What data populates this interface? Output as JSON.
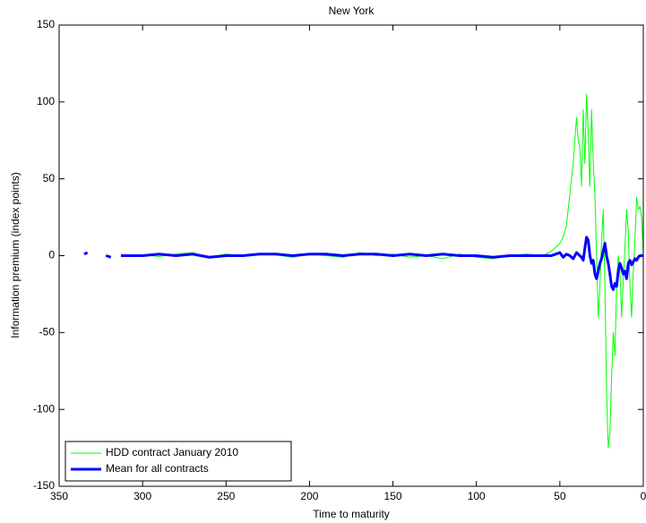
{
  "chart_data": {
    "type": "line",
    "title": "New York",
    "x_label": "Time to maturity",
    "y_label": "Information premium (index points)",
    "x": [
      335,
      333,
      331,
      328,
      325,
      322,
      319,
      316,
      313,
      310,
      300,
      290,
      280,
      270,
      260,
      250,
      240,
      230,
      220,
      210,
      200,
      190,
      180,
      170,
      160,
      150,
      140,
      130,
      120,
      110,
      100,
      90,
      80,
      70,
      60,
      55,
      50,
      48,
      46,
      44,
      42,
      40,
      39,
      38,
      37,
      36,
      35,
      34,
      33,
      32,
      31,
      30,
      29,
      28,
      27,
      26,
      25,
      24,
      23,
      22,
      21,
      20,
      19,
      18,
      17,
      16,
      15,
      14,
      13,
      12,
      11,
      10,
      9,
      8,
      7,
      6,
      5,
      4,
      3,
      2,
      1,
      0
    ],
    "series": [
      {
        "name": "HDD contract January 2010",
        "color": "#00ff00",
        "width": 1,
        "values": [
          null,
          null,
          null,
          null,
          null,
          null,
          null,
          null,
          null,
          0,
          0.5,
          -0.5,
          1,
          2,
          -1,
          1,
          0,
          1,
          0.5,
          -1,
          1,
          0,
          -1,
          2,
          0,
          1,
          -1,
          0,
          -2,
          1,
          -1,
          -2,
          0,
          1,
          0,
          3,
          8,
          12,
          20,
          40,
          60,
          90,
          75,
          70,
          45,
          95,
          60,
          105,
          80,
          45,
          95,
          60,
          40,
          0,
          -40,
          -20,
          10,
          30,
          -20,
          -90,
          -125,
          -115,
          -80,
          -50,
          -65,
          -20,
          0,
          -10,
          -40,
          -15,
          5,
          30,
          15,
          -20,
          -40,
          -10,
          10,
          38,
          30,
          32,
          25,
          0
        ]
      },
      {
        "name": "Mean for all contracts",
        "color": "#0000ff",
        "width": 3,
        "values": [
          1,
          2,
          null,
          1,
          null,
          0,
          -1,
          null,
          0,
          0,
          0,
          1,
          0,
          1,
          -1,
          0,
          0,
          1,
          1,
          0,
          1,
          1,
          0,
          1,
          1,
          0,
          1,
          0,
          1,
          0,
          0,
          -1,
          0,
          0,
          0,
          0,
          2,
          -1,
          1,
          0,
          -2,
          2,
          1,
          0,
          -1,
          -3,
          5,
          12,
          10,
          0,
          -5,
          -3,
          -12,
          -15,
          -10,
          -5,
          -2,
          3,
          8,
          0,
          -5,
          -12,
          -20,
          -22,
          -18,
          -20,
          -10,
          -5,
          -8,
          -12,
          -10,
          -15,
          -5,
          -3,
          -6,
          -4,
          -2,
          -3,
          -1,
          0,
          0,
          0
        ]
      }
    ],
    "xlim": [
      350,
      0
    ],
    "xticks": [
      350,
      300,
      250,
      200,
      150,
      100,
      50,
      0
    ],
    "ylim": [
      -150,
      150
    ],
    "yticks": [
      -150,
      -100,
      -50,
      0,
      50,
      100,
      150
    ],
    "legend": "lower left"
  }
}
